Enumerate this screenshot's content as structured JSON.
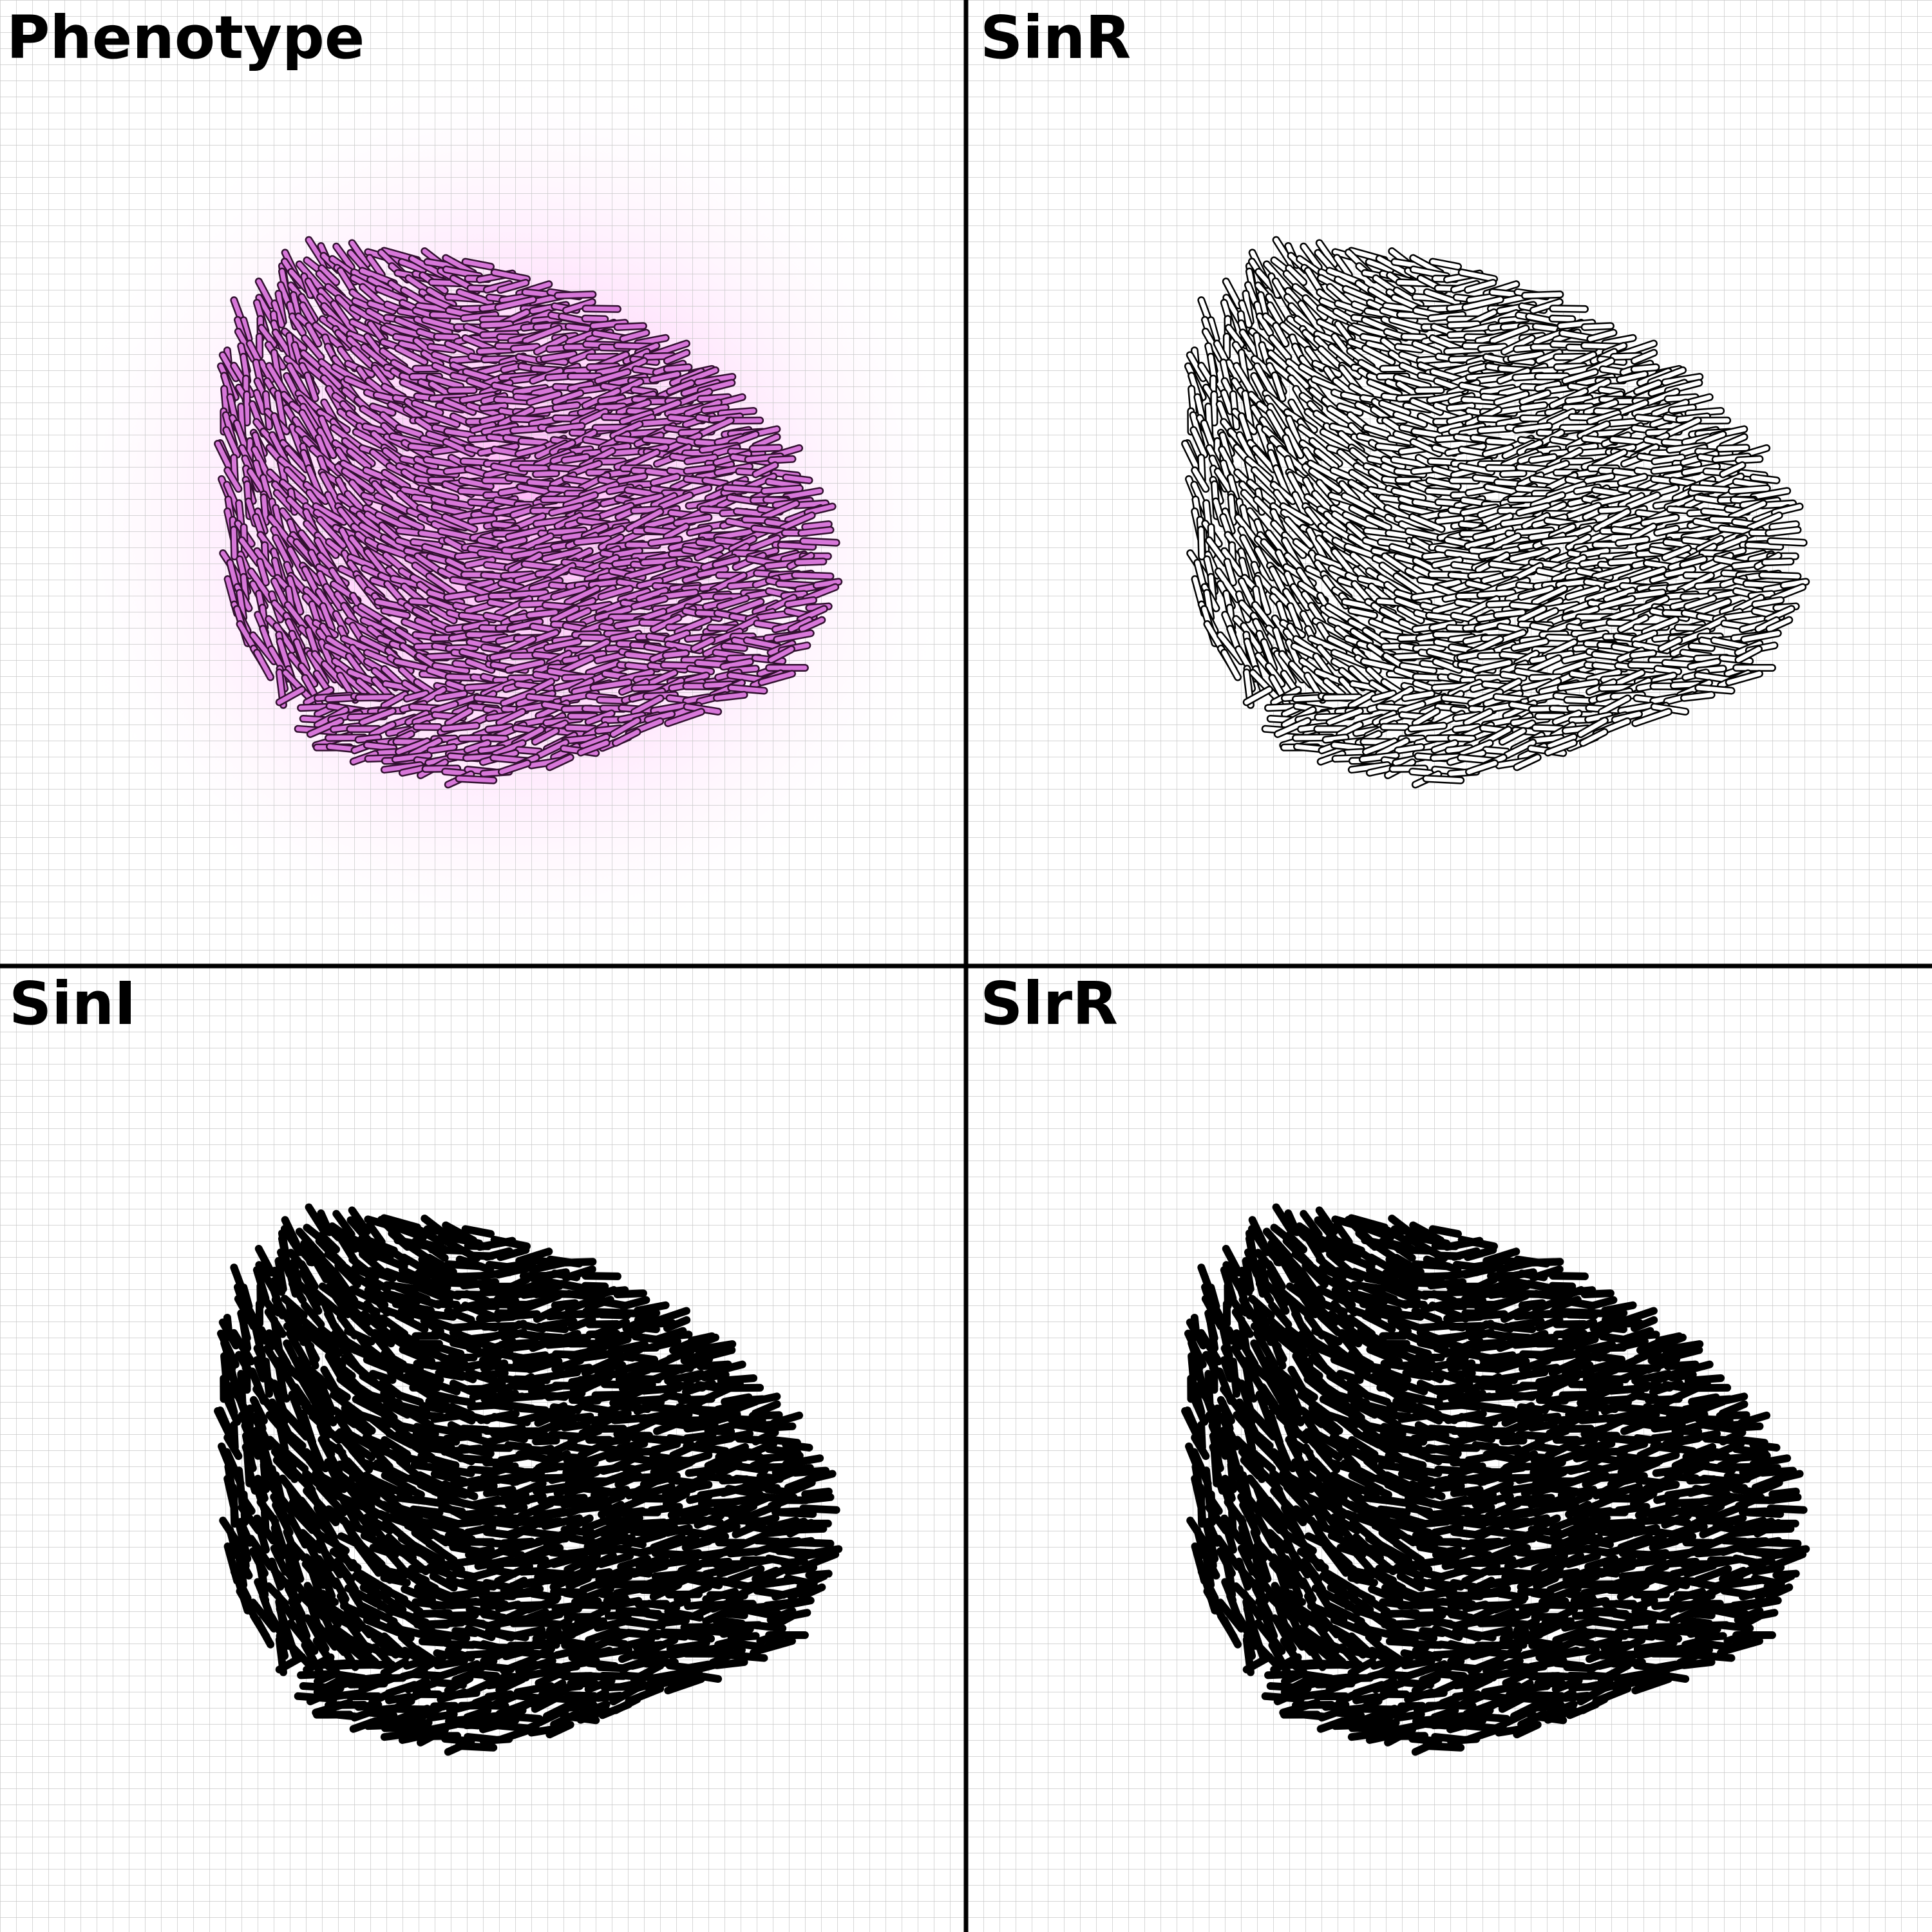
{
  "panels": [
    {
      "title": "Phenotype",
      "cell_fill": "#d777d9",
      "cell_stroke": "#31102f",
      "hollow": false,
      "solid": false,
      "has_glow": true,
      "glow_color": "#ff9bf4"
    },
    {
      "title": "SinR",
      "cell_fill": "#ffffff",
      "cell_stroke": "#000000",
      "hollow": true,
      "solid": false,
      "has_glow": false
    },
    {
      "title": "SinI",
      "cell_fill": "#000000",
      "cell_stroke": "#000000",
      "hollow": false,
      "solid": true,
      "has_glow": false
    },
    {
      "title": "SlrR",
      "cell_fill": "#000000",
      "cell_stroke": "#000000",
      "hollow": false,
      "solid": true,
      "has_glow": false
    }
  ],
  "colors": {
    "background": "#ffffff",
    "grid": "#c8c8c8",
    "divider": "#000000"
  }
}
